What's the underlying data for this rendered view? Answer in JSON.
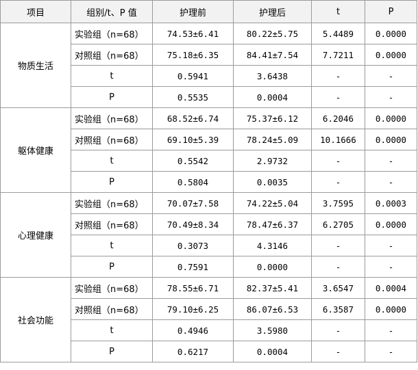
{
  "headers": [
    "项目",
    "组别/t、P 值",
    "护理前",
    "护理后",
    "t",
    "P"
  ],
  "sections": [
    {
      "item": "物质生活",
      "rows": [
        {
          "group": "实验组（n=68）",
          "before": "74.53±6.41",
          "after": "80.22±5.75",
          "t": "5.4489",
          "p": "0.0000"
        },
        {
          "group": "对照组（n=68）",
          "before": "75.18±6.35",
          "after": "84.41±7.54",
          "t": "7.7211",
          "p": "0.0000"
        },
        {
          "group": "t",
          "before": "0.5941",
          "after": "3.6438",
          "t": "-",
          "p": "-"
        },
        {
          "group": "P",
          "before": "0.5535",
          "after": "0.0004",
          "t": "-",
          "p": "-"
        }
      ]
    },
    {
      "item": "躯体健康",
      "rows": [
        {
          "group": "实验组（n=68）",
          "before": "68.52±6.74",
          "after": "75.37±6.12",
          "t": "6.2046",
          "p": "0.0000"
        },
        {
          "group": "对照组（n=68）",
          "before": "69.10±5.39",
          "after": "78.24±5.09",
          "t": "10.1666",
          "p": "0.0000"
        },
        {
          "group": "t",
          "before": "0.5542",
          "after": "2.9732",
          "t": "-",
          "p": "-"
        },
        {
          "group": "P",
          "before": "0.5804",
          "after": "0.0035",
          "t": "-",
          "p": "-"
        }
      ]
    },
    {
      "item": "心理健康",
      "rows": [
        {
          "group": "实验组（n=68）",
          "before": "70.07±7.58",
          "after": "74.22±5.04",
          "t": "3.7595",
          "p": "0.0003"
        },
        {
          "group": "对照组（n=68）",
          "before": "70.49±8.34",
          "after": "78.47±6.37",
          "t": "6.2705",
          "p": "0.0000"
        },
        {
          "group": "t",
          "before": "0.3073",
          "after": "4.3146",
          "t": "-",
          "p": "-"
        },
        {
          "group": "P",
          "before": "0.7591",
          "after": "0.0000",
          "t": "-",
          "p": "-"
        }
      ]
    },
    {
      "item": "社会功能",
      "rows": [
        {
          "group": "实验组（n=68）",
          "before": "78.55±6.71",
          "after": "82.37±5.41",
          "t": "3.6547",
          "p": "0.0004"
        },
        {
          "group": "对照组（n=68）",
          "before": "79.10±6.25",
          "after": "86.07±6.53",
          "t": "6.3587",
          "p": "0.0000"
        },
        {
          "group": "t",
          "before": "0.4946",
          "after": "3.5980",
          "t": "-",
          "p": "-"
        },
        {
          "group": "P",
          "before": "0.6217",
          "after": "0.0004",
          "t": "-",
          "p": "-"
        }
      ]
    }
  ]
}
